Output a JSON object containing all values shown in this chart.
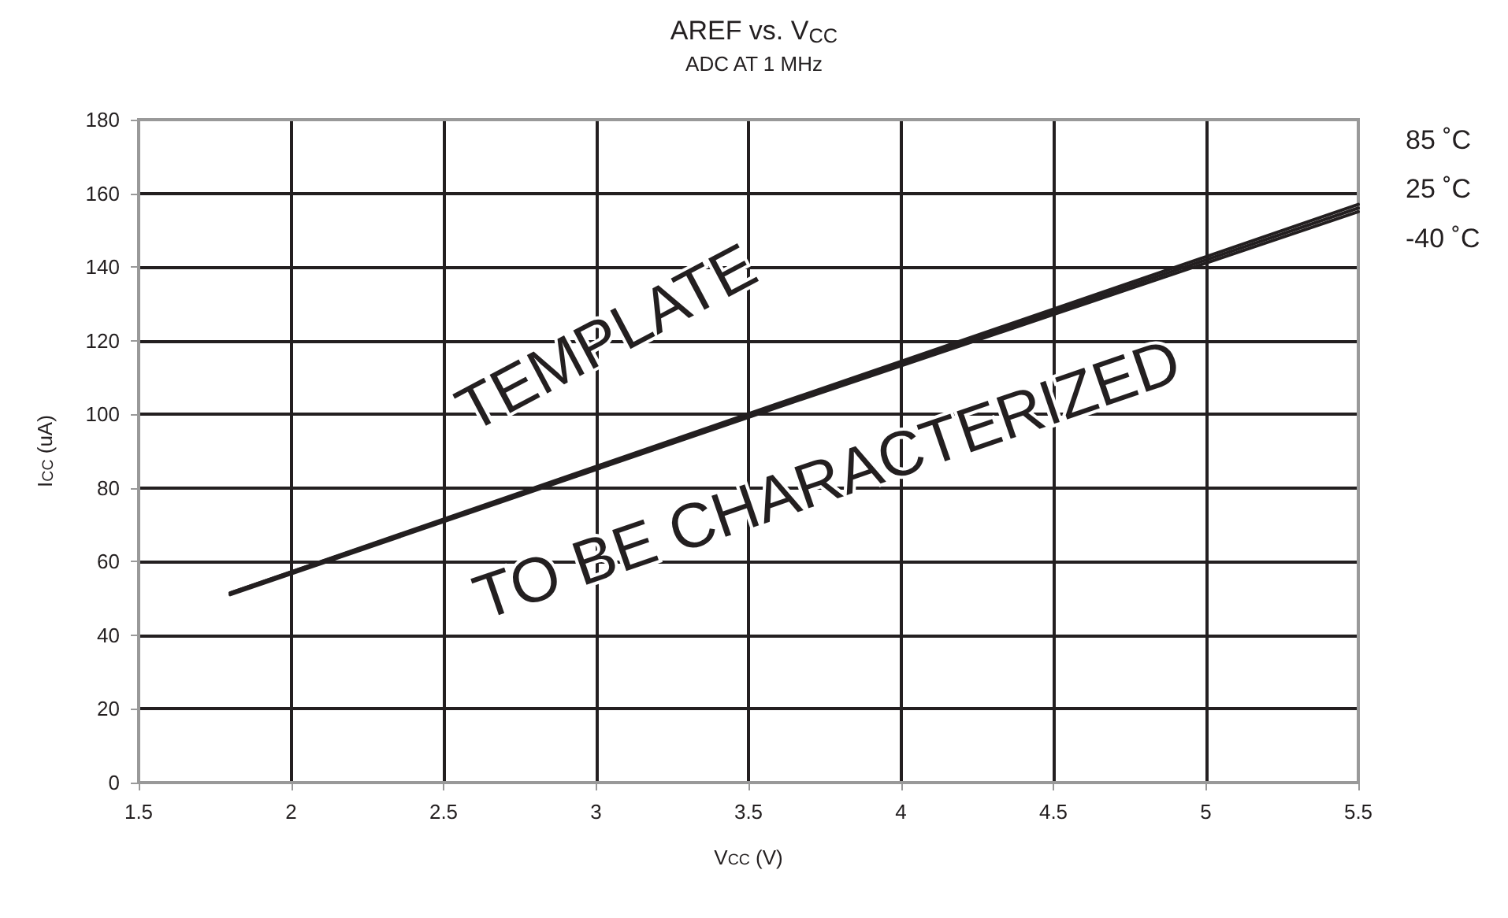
{
  "chart_data": {
    "type": "line",
    "title": "AREF vs. V$_{CC}$",
    "subtitle": "ADC AT 1 MHz",
    "xlabel": "V$_{CC}$ (V)",
    "ylabel": "I$_{CC}$ (uA)",
    "annotations": [
      "TEMPLATE",
      "TO BE CHARACTERIZED"
    ],
    "xlim": [
      1.5,
      5.5
    ],
    "xticks": [
      1.5,
      2,
      2.5,
      3,
      3.5,
      4,
      4.5,
      5,
      5.5
    ],
    "ylim": [
      0,
      180
    ],
    "yticks": [
      0,
      20,
      40,
      60,
      80,
      100,
      120,
      140,
      160,
      180
    ],
    "grid": true,
    "legend": false,
    "marker": "none",
    "line_style": "solid",
    "series": [
      {
        "name": "85 ˚C",
        "color": "#231f20",
        "x": [
          1.8,
          3.6,
          5.5
        ],
        "values": [
          51.5,
          103,
          157
        ]
      },
      {
        "name": "25 ˚C",
        "color": "#231f20",
        "x": [
          1.8,
          3.6,
          5.5
        ],
        "values": [
          51.5,
          102.5,
          156
        ]
      },
      {
        "name": "-40 ˚C",
        "color": "#231f20",
        "x": [
          1.8,
          3.6,
          5.5
        ],
        "values": [
          51,
          102,
          155
        ]
      }
    ]
  }
}
